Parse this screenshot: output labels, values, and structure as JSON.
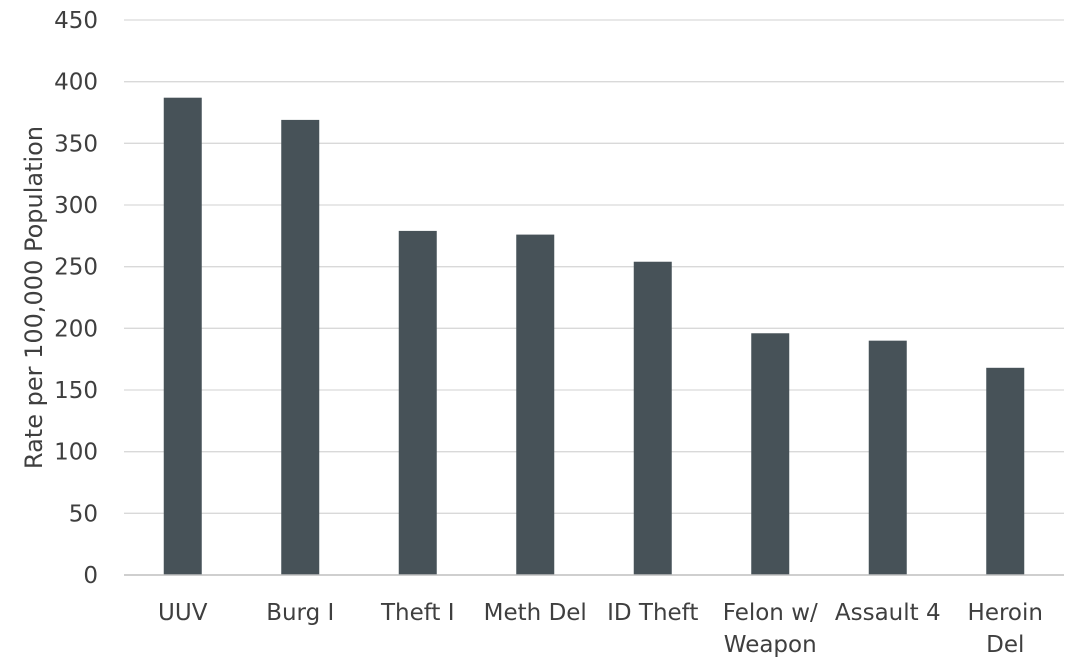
{
  "chart_data": {
    "type": "bar",
    "categories": [
      [
        "UUV"
      ],
      [
        "Burg I"
      ],
      [
        "Theft I"
      ],
      [
        "Meth Del"
      ],
      [
        "ID Theft"
      ],
      [
        "Felon w/",
        "Weapon"
      ],
      [
        "Assault 4"
      ],
      [
        "Heroin",
        "Del"
      ]
    ],
    "values": [
      387,
      369,
      279,
      276,
      254,
      196,
      190,
      168
    ],
    "ylabel": "Rate per 100,000 Population",
    "xlabel": "",
    "ylim": [
      0,
      450
    ],
    "yticks": [
      0,
      50,
      100,
      150,
      200,
      250,
      300,
      350,
      400,
      450
    ],
    "grid": true,
    "bar_color": "#475258",
    "grid_color": "#d9d9d9",
    "text_color": "#3f3f3f"
  }
}
